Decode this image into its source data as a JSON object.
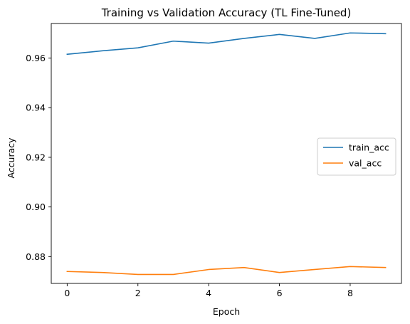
{
  "chart_data": {
    "type": "line",
    "title": "Training vs Validation Accuracy (TL Fine-Tuned)",
    "xlabel": "Epoch",
    "ylabel": "Accuracy",
    "x": [
      0,
      1,
      2,
      3,
      4,
      5,
      6,
      7,
      8,
      9
    ],
    "xlim": [
      -0.45,
      9.45
    ],
    "ylim": [
      0.8692,
      0.9739
    ],
    "xticks": [
      0,
      2,
      4,
      6,
      8
    ],
    "yticks": [
      0.88,
      0.9,
      0.92,
      0.94,
      0.96
    ],
    "ytick_labels": [
      "0.88",
      "0.90",
      "0.92",
      "0.94",
      "0.96"
    ],
    "grid": false,
    "legend_position": "center-right",
    "series": [
      {
        "name": "train_acc",
        "color": "#1f77b4",
        "values": [
          0.9615,
          0.9629,
          0.9641,
          0.9668,
          0.966,
          0.9679,
          0.9695,
          0.9679,
          0.9701,
          0.9698
        ]
      },
      {
        "name": "val_acc",
        "color": "#ff7f0e",
        "values": [
          0.874,
          0.8736,
          0.8728,
          0.8728,
          0.8748,
          0.8756,
          0.8736,
          0.8748,
          0.876,
          0.8756
        ]
      }
    ]
  }
}
